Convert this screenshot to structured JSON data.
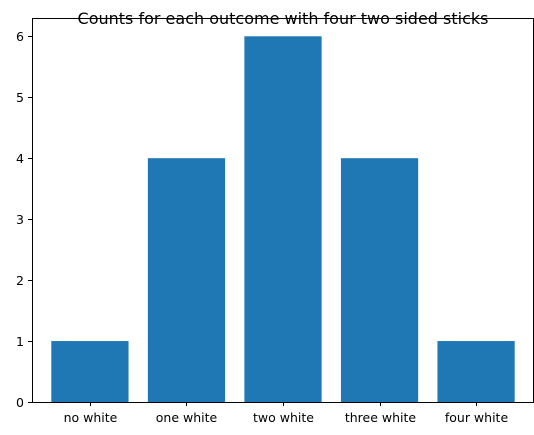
{
  "chart_data": {
    "type": "bar",
    "title": "Counts for each outcome with four two sided sticks",
    "xlabel": "",
    "ylabel": "",
    "categories": [
      "no white",
      "one white",
      "two white",
      "three white",
      "four white"
    ],
    "values": [
      1,
      4,
      6,
      4,
      1
    ],
    "ylim": [
      0,
      6.3
    ],
    "yticks": [
      0,
      1,
      2,
      3,
      4,
      5,
      6
    ],
    "bar_color": "#1f77b4",
    "grid": false,
    "legend": "none"
  }
}
